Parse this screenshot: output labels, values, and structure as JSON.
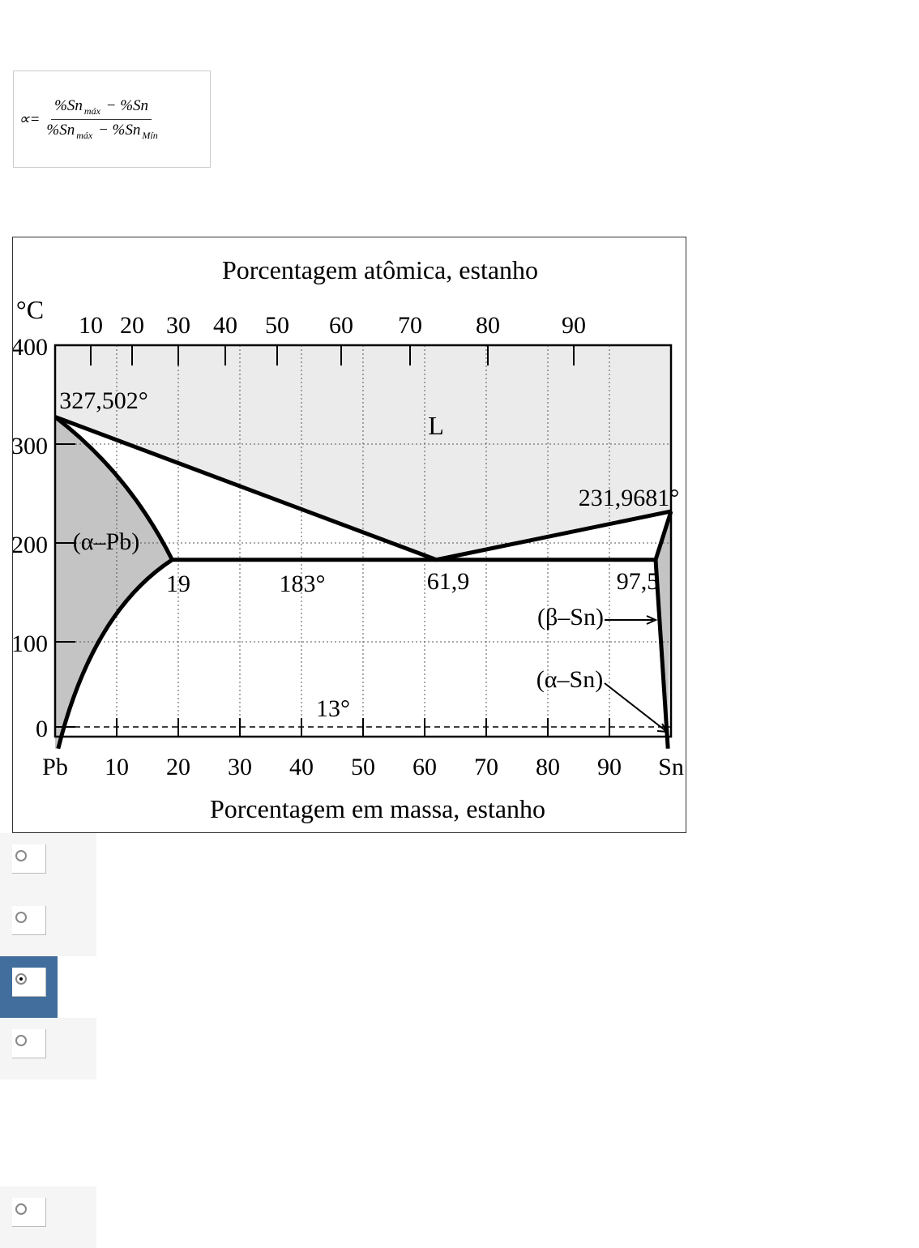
{
  "formula": {
    "lhs": "∝=",
    "numerator": [
      "%Sn",
      "máx",
      " − %Sn"
    ],
    "denominator": [
      "%Sn",
      "máx",
      " − %Sn",
      "Mín"
    ]
  },
  "diagram": {
    "top_title": "Porcentagem atômica, estanho",
    "bottom_title": "Porcentagem em massa, estanho",
    "unit": "°C",
    "y_ticks": [
      "400",
      "300",
      "200",
      "100",
      "0"
    ],
    "top_ticks": [
      "10",
      "20",
      "30",
      "40",
      "50",
      "60",
      "70",
      "80",
      "90"
    ],
    "bottom_ticks": [
      "Pb",
      "10",
      "20",
      "30",
      "40",
      "50",
      "60",
      "70",
      "80",
      "90",
      "Sn"
    ],
    "labels": {
      "pb_melt": "327,502°",
      "L": "L",
      "sn_melt": "231,9681°",
      "alpha_pb": "(α–Pb)",
      "c19": "19",
      "t183": "183°",
      "c619": "61,9",
      "c975": "97,5",
      "beta_sn": "(β–Sn)",
      "alpha_sn": "(α–Sn)",
      "t13": "13°"
    },
    "colors": {
      "liquid": "#ebebeb",
      "alpha": "#c4c4c4",
      "line": "#000000"
    }
  },
  "options": [
    {
      "selected": false
    },
    {
      "selected": false
    },
    {
      "selected": true
    },
    {
      "selected": false
    },
    {
      "selected": false
    }
  ],
  "colors": {
    "selected_bg": "#416e9c",
    "option_bg": "#f5f5f5"
  }
}
